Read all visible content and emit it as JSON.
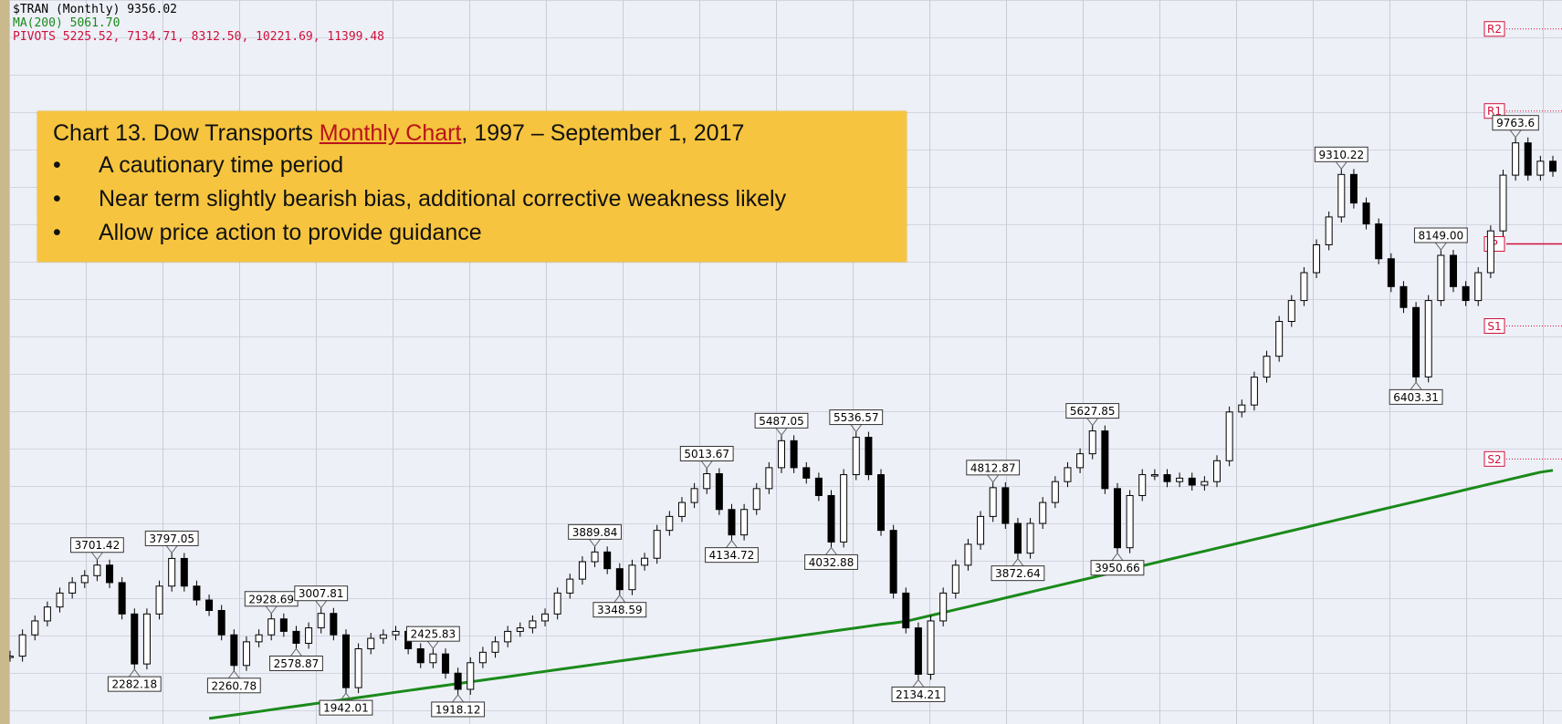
{
  "chart_data": {
    "type": "candlestick",
    "legend": [
      {
        "text": "$TRAN (Monthly) 9356.02",
        "color": "#000000"
      },
      {
        "text": "MA(200) 5061.70",
        "color": "#1a8a1a"
      },
      {
        "text": "PIVOTS 5225.52, 7134.71, 8312.50, 10221.69, 11399.48",
        "color": "#d0103a"
      }
    ],
    "note": {
      "title_before": "Chart 13. Dow Transports ",
      "link": "Monthly Chart",
      "title_after": ", 1997 – September 1,  2017",
      "bullets": [
        "A cautionary time period",
        "Near term slightly bearish bias, additional corrective weakness likely",
        "Allow price action to provide guidance"
      ]
    },
    "ylim": [
      1420,
      11815
    ],
    "series": [
      {
        "name": "$TRAN",
        "color": "#000000",
        "values": [
          2394,
          2700,
          2900,
          3100,
          3300,
          3450,
          3550,
          3701.42,
          3450,
          3000,
          2282.18,
          3000,
          3400,
          3797.05,
          3400,
          3200,
          3050,
          2700,
          2260.78,
          2600,
          2700,
          2928.69,
          2750,
          2578.87,
          2800,
          3007.81,
          2700,
          1942.01,
          2500,
          2650,
          2700,
          2750,
          2500,
          2300,
          2425.83,
          2150,
          1918.12,
          2300,
          2450,
          2600,
          2750,
          2800,
          2900,
          3000,
          3300,
          3500,
          3750,
          3889.84,
          3650,
          3348.59,
          3700,
          3800,
          4200,
          4400,
          4600,
          4800,
          5013.67,
          4500,
          4134.72,
          4500,
          4800,
          5100,
          5487.05,
          5100,
          4950,
          4700,
          4032.88,
          5000,
          5536.57,
          5000,
          4200,
          3300,
          2800,
          2134.21,
          2900,
          3300,
          3700,
          4000,
          4400,
          4812.87,
          4300,
          3872.64,
          4300,
          4600,
          4900,
          5100,
          5300,
          5627.85,
          4800,
          3950.66,
          4700,
          5000,
          5000,
          4900,
          4950,
          4850,
          4900,
          5200,
          5900,
          6000,
          6400,
          6700,
          7200,
          7500,
          7900,
          8300,
          8700,
          9310.22,
          8900,
          8600,
          8100,
          7700,
          7400,
          6403.31,
          7500,
          8149,
          7700,
          7500,
          7900,
          8500,
          9300,
          9763.6,
          9300,
          9500,
          9356.02
        ],
        "value_labels": [
          null,
          null,
          null,
          null,
          null,
          null,
          null,
          "3701.42",
          null,
          null,
          "2282.18",
          null,
          null,
          "3797.05",
          null,
          null,
          null,
          null,
          "2260.78",
          null,
          null,
          "2928.69",
          null,
          "2578.87",
          null,
          "3007.81",
          null,
          "1942.01",
          null,
          null,
          null,
          null,
          null,
          null,
          "2425.83",
          null,
          "1918.12",
          null,
          null,
          null,
          null,
          null,
          null,
          null,
          null,
          null,
          null,
          "3889.84",
          null,
          "3348.59",
          null,
          null,
          null,
          null,
          null,
          null,
          "5013.67",
          null,
          "4134.72",
          null,
          null,
          null,
          "5487.05",
          null,
          null,
          null,
          "4032.88",
          null,
          "5536.57",
          null,
          null,
          null,
          null,
          "2134.21",
          null,
          null,
          null,
          null,
          null,
          "4812.87",
          null,
          "3872.64",
          null,
          null,
          null,
          null,
          null,
          "5627.85",
          null,
          "3950.66",
          null,
          null,
          null,
          null,
          null,
          null,
          null,
          null,
          null,
          null,
          null,
          null,
          null,
          null,
          null,
          null,
          null,
          "9310.22",
          null,
          null,
          null,
          null,
          null,
          "6403.31",
          null,
          "8149.00",
          null,
          null,
          null,
          null,
          null,
          "9763.6",
          null,
          null,
          null
        ]
      },
      {
        "name": "MA(200)",
        "color": "#1a8a1a",
        "values": [
          null,
          null,
          null,
          null,
          null,
          null,
          null,
          null,
          null,
          null,
          null,
          null,
          null,
          null,
          null,
          null,
          1500,
          1525,
          1550,
          1575,
          1600,
          1625,
          1650,
          1675,
          1700,
          1725,
          1750,
          1775,
          1800,
          1825,
          1850,
          1875,
          1900,
          1925,
          1950,
          1975,
          2000,
          2025,
          2050,
          2075,
          2100,
          2125,
          2150,
          2175,
          2200,
          2225,
          2250,
          2275,
          2300,
          2325,
          2350,
          2375,
          2400,
          2425,
          2450,
          2475,
          2500,
          2525,
          2550,
          2575,
          2600,
          2625,
          2650,
          2675,
          2700,
          2725,
          2750,
          2775,
          2800,
          2825,
          2850,
          2870,
          2894,
          2936,
          2978,
          3020,
          3062,
          3104,
          3146,
          3188,
          3230,
          3272,
          3314,
          3356,
          3398,
          3440,
          3482,
          3524,
          3566,
          3608,
          3650,
          3692,
          3734,
          3776,
          3818,
          3860,
          3902,
          3944,
          3986,
          4028,
          4070,
          4112,
          4154,
          4196,
          4238,
          4280,
          4322,
          4364,
          4406,
          4448,
          4490,
          4532,
          4574,
          4616,
          4658,
          4700,
          4742,
          4784,
          4826,
          4868,
          4910,
          4952,
          4994,
          5036,
          5061.7
        ]
      }
    ],
    "pivots": [
      {
        "label": "R2",
        "value": 11399.48
      },
      {
        "label": "R1",
        "value": 10221.69
      },
      {
        "label": "P",
        "value": 8312.5
      },
      {
        "label": "S1",
        "value": 7134.71
      },
      {
        "label": "S2",
        "value": 5225.52
      }
    ],
    "pivot_color": "#d0103a"
  }
}
